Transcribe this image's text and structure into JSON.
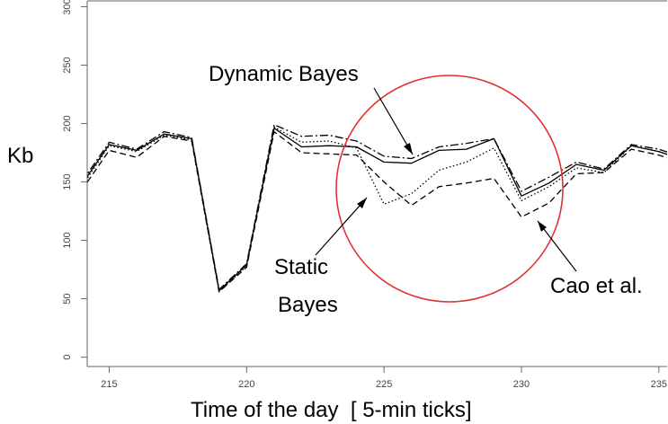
{
  "chart_data": {
    "type": "line",
    "xlabel": "Time of the day  [ 5-min ticks]",
    "ylabel": "Kb",
    "xlim": [
      214.2,
      235.3
    ],
    "ylim": [
      -8,
      305
    ],
    "x_ticks": [
      215,
      220,
      225,
      230,
      235
    ],
    "y_ticks": [
      0,
      50,
      100,
      150,
      200,
      250,
      300
    ],
    "x": [
      214,
      215,
      216,
      217,
      218,
      219,
      220,
      221,
      222,
      223,
      224,
      225,
      226,
      227,
      228,
      229,
      230,
      231,
      232,
      233,
      234,
      235,
      236
    ],
    "series": [
      {
        "style": "solid",
        "values": [
          148,
          182,
          177,
          191,
          187,
          57,
          79,
          196,
          180,
          181,
          180,
          167,
          166,
          177,
          178,
          187,
          138,
          149,
          165,
          160,
          181,
          176,
          168
        ]
      },
      {
        "style": "dashdot",
        "values": [
          150,
          184,
          178,
          193,
          188,
          58,
          80,
          199,
          189,
          190,
          185,
          172,
          170,
          180,
          183,
          187,
          142,
          154,
          167,
          161,
          182,
          178,
          170
        ]
      },
      {
        "style": "dotted",
        "values": [
          146,
          181,
          176,
          190,
          186,
          56,
          78,
          197,
          184,
          185,
          179,
          131,
          140,
          160,
          167,
          179,
          134,
          146,
          162,
          158,
          181,
          176,
          168
        ]
      },
      {
        "style": "dashed",
        "values": [
          143,
          177,
          171,
          189,
          185,
          56,
          77,
          193,
          175,
          174,
          173,
          150,
          130,
          146,
          149,
          153,
          120,
          132,
          157,
          158,
          178,
          173,
          165
        ]
      }
    ],
    "annotations": [
      {
        "text": "Dynamic Bayes"
      },
      {
        "text": "Static"
      },
      {
        "text": "Bayes"
      },
      {
        "text": "Cao et al."
      }
    ],
    "highlight_circle_color": "#e03030",
    "line_color": "#000000",
    "grid": false
  }
}
